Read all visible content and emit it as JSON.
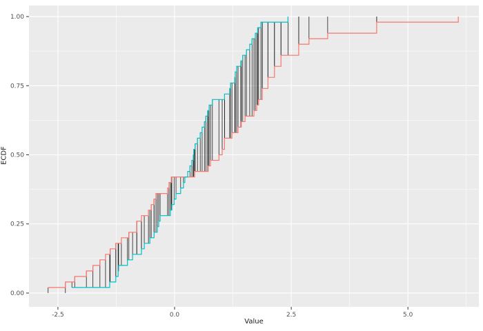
{
  "chart_data": {
    "type": "line",
    "subtype": "ecdf-step-comparison",
    "title": "",
    "xlabel": "Value",
    "ylabel": "ECDF",
    "grid": true,
    "legend_position": "none",
    "panel_bg": "#EBEBEB",
    "grid_color": "#FFFFFF",
    "tick_color": "#333333",
    "tick_label_color": "#4D4D4D",
    "axis_title_color": "#1A1A1A",
    "xlim": [
      -3.12,
      6.52
    ],
    "ylim": [
      -0.05,
      1.04
    ],
    "x_major_ticks": {
      "values": [
        -2.5,
        0,
        2.5,
        5
      ],
      "labels": [
        "-2.5",
        "0.0",
        "2.5",
        "5.0"
      ]
    },
    "x_minor_ticks": [
      -1.25,
      1.25,
      3.75,
      6.25
    ],
    "y_major_ticks": {
      "values": [
        0,
        0.25,
        0.5,
        0.75,
        1
      ],
      "labels": [
        "0.00",
        "0.25",
        "0.50",
        "0.75",
        "1.00"
      ]
    },
    "y_minor_ticks": [
      0.125,
      0.375,
      0.625,
      0.875
    ],
    "series": [
      {
        "name": "ecdf-sample-1-red",
        "color": "#F8766D",
        "n": 50,
        "sample": [
          -2.71,
          -2.34,
          -2.14,
          -1.89,
          -1.75,
          -1.6,
          -1.48,
          -1.38,
          -1.26,
          -1.14,
          -0.98,
          -0.81,
          -0.81,
          -0.71,
          -0.56,
          -0.5,
          -0.44,
          -0.4,
          -0.15,
          -0.12,
          -0.07,
          0.43,
          0.72,
          0.77,
          0.95,
          1.02,
          1.07,
          1.07,
          1.23,
          1.36,
          1.43,
          1.51,
          1.7,
          1.76,
          1.8,
          1.88,
          1.88,
          2.0,
          2.0,
          2.14,
          2.14,
          2.28,
          2.28,
          2.66,
          2.66,
          2.88,
          3.28,
          4.33,
          4.33,
          6.08
        ]
      },
      {
        "name": "ecdf-sample-2-cyan",
        "color": "#00BFC4",
        "n": 50,
        "sample": [
          -2.2,
          -1.39,
          -1.26,
          -1.21,
          -1.2,
          -1.01,
          -0.9,
          -0.71,
          -0.65,
          -0.53,
          -0.44,
          -0.37,
          -0.34,
          -0.31,
          -0.09,
          -0.06,
          -0.01,
          0.03,
          0.13,
          0.19,
          0.22,
          0.28,
          0.33,
          0.37,
          0.4,
          0.41,
          0.44,
          0.49,
          0.55,
          0.59,
          0.64,
          0.67,
          0.71,
          0.74,
          0.81,
          1.07,
          1.18,
          1.2,
          1.29,
          1.3,
          1.33,
          1.42,
          1.46,
          1.54,
          1.61,
          1.66,
          1.73,
          1.78,
          1.85,
          2.43
        ]
      }
    ],
    "distance_segments": {
      "color": "#1C1C1C",
      "at": "each pooled sample point",
      "count": 100,
      "meaning": "vertical distance between the two ECDFs"
    }
  }
}
